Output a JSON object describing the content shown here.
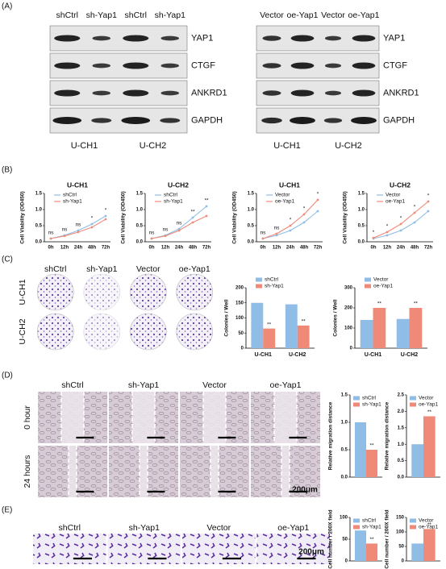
{
  "panel_labels": [
    "(A)",
    "(B)",
    "(C)",
    "(D)",
    "(E)"
  ],
  "blots": [
    {
      "lanes": [
        "shCtrl",
        "sh-Yap1",
        "shCtrl",
        "sh-Yap1"
      ],
      "proteins": [
        "YAP1",
        "CTGF",
        "ANKRD1",
        "GAPDH"
      ],
      "groups": [
        "U-CH1",
        "U-CH2"
      ]
    },
    {
      "lanes": [
        "Vector",
        "oe-Yap1",
        "Vector",
        "oe-Yap1"
      ],
      "proteins": [
        "YAP1",
        "CTGF",
        "ANKRD1",
        "GAPDH"
      ],
      "groups": [
        "U-CH1",
        "U-CH2"
      ]
    }
  ],
  "colony": {
    "columns": [
      "shCtrl",
      "sh-Yap1",
      "Vector",
      "oe-Yap1"
    ],
    "rows": [
      "U-CH1",
      "U-CH2"
    ]
  },
  "migration": {
    "columns": [
      "shCtrl",
      "sh-Yap1",
      "Vector",
      "oe-Yap1"
    ],
    "rows": [
      "0 hour",
      "24 hours"
    ],
    "scale": "200μm"
  },
  "invasion": {
    "columns": [
      "shCtrl",
      "sh-Yap1",
      "Vector",
      "oe-Yap1"
    ],
    "scale": "200μm"
  },
  "chart_data": [
    {
      "type": "line",
      "title": "U-CH1",
      "ylabel": "Cell Viability (OD450)",
      "categories": [
        "0h",
        "12h",
        "24h",
        "48h",
        "72h"
      ],
      "series": [
        {
          "name": "shCtrl",
          "color": "#8fbde6",
          "values": [
            0.1,
            0.2,
            0.35,
            0.55,
            0.8
          ]
        },
        {
          "name": "sh-Yap1",
          "color": "#f08a78",
          "values": [
            0.1,
            0.18,
            0.3,
            0.45,
            0.7
          ]
        }
      ],
      "annotations": [
        "ns",
        "ns",
        "ns",
        "*",
        "*"
      ],
      "ylim": [
        0,
        1.5
      ],
      "yticks": [
        {
          "value": 0,
          "label": "0.0"
        },
        {
          "value": 0.5,
          "label": "0.5"
        },
        {
          "value": 1,
          "label": "1.0"
        },
        {
          "value": 1.5,
          "label": "1.5"
        }
      ]
    },
    {
      "type": "line",
      "title": "U-CH2",
      "ylabel": "Cell Viability (OD450)",
      "categories": [
        "0h",
        "12h",
        "24h",
        "48h",
        "72h"
      ],
      "series": [
        {
          "name": "shCtrl",
          "color": "#8fbde6",
          "values": [
            0.1,
            0.2,
            0.4,
            0.75,
            1.1
          ]
        },
        {
          "name": "sh-Yap1",
          "color": "#f08a78",
          "values": [
            0.1,
            0.18,
            0.35,
            0.6,
            0.8
          ]
        }
      ],
      "annotations": [
        "ns",
        "ns",
        "ns",
        "**",
        "**"
      ],
      "ylim": [
        0,
        1.5
      ],
      "yticks": [
        {
          "value": 0,
          "label": "0.0"
        },
        {
          "value": 0.5,
          "label": "0.5"
        },
        {
          "value": 1,
          "label": "1.0"
        },
        {
          "value": 1.5,
          "label": "1.5"
        }
      ]
    },
    {
      "type": "line",
      "title": "U-CH1",
      "ylabel": "Cell Viability (OD450)",
      "categories": [
        "0h",
        "12h",
        "24h",
        "48h",
        "72h"
      ],
      "series": [
        {
          "name": "Vector",
          "color": "#8fbde6",
          "values": [
            0.1,
            0.2,
            0.35,
            0.6,
            0.95
          ]
        },
        {
          "name": "oe-Yap1",
          "color": "#f08a78",
          "values": [
            0.1,
            0.25,
            0.5,
            0.85,
            1.3
          ]
        }
      ],
      "annotations": [
        "ns",
        "ns",
        "*",
        "*",
        "*"
      ],
      "ylim": [
        0,
        1.5
      ],
      "yticks": [
        {
          "value": 0,
          "label": "0.0"
        },
        {
          "value": 0.5,
          "label": "0.5"
        },
        {
          "value": 1,
          "label": "1.0"
        },
        {
          "value": 1.5,
          "label": "1.5"
        }
      ]
    },
    {
      "type": "line",
      "title": "U-CH2",
      "ylabel": "Cell Viability (OD450)",
      "categories": [
        "0h",
        "12h",
        "24h",
        "48h",
        "72h"
      ],
      "series": [
        {
          "name": "Vector",
          "color": "#8fbde6",
          "values": [
            0.1,
            0.2,
            0.35,
            0.6,
            0.95
          ]
        },
        {
          "name": "oe-Yap1",
          "color": "#f08a78",
          "values": [
            0.12,
            0.3,
            0.55,
            0.9,
            1.25
          ]
        }
      ],
      "annotations": [
        "*",
        "*",
        "*",
        "*",
        "*"
      ],
      "ylim": [
        0,
        1.5
      ],
      "yticks": [
        {
          "value": 0,
          "label": "0.0"
        },
        {
          "value": 0.5,
          "label": "0.5"
        },
        {
          "value": 1,
          "label": "1.0"
        },
        {
          "value": 1.5,
          "label": "1.5"
        }
      ]
    },
    {
      "type": "bar",
      "ylabel": "Colonies / Well",
      "categories": [
        "U-CH1",
        "U-CH2"
      ],
      "series": [
        {
          "name": "shCtrl",
          "color": "#8fbde6",
          "values": [
            150,
            145
          ]
        },
        {
          "name": "sh-Yap1",
          "color": "#f08a78",
          "values": [
            65,
            75
          ]
        }
      ],
      "annotations": [
        "**",
        "**"
      ],
      "ylim": [
        0,
        200
      ],
      "yticks": [
        0,
        50,
        100,
        150,
        200
      ]
    },
    {
      "type": "bar",
      "ylabel": "Colonies / Well",
      "categories": [
        "U-CH1",
        "U-CH2"
      ],
      "series": [
        {
          "name": "Vector",
          "color": "#8fbde6",
          "values": [
            140,
            145
          ]
        },
        {
          "name": "oe-Yap1",
          "color": "#f08a78",
          "values": [
            200,
            200
          ]
        }
      ],
      "annotations": [
        "**",
        "**"
      ],
      "ylim": [
        0,
        300
      ],
      "yticks": [
        0,
        100,
        200,
        300
      ]
    },
    {
      "type": "bar",
      "ylabel": "Relative migration distance",
      "series": [
        {
          "name": "shCtrl",
          "color": "#8fbde6",
          "values": [
            1.0
          ]
        },
        {
          "name": "sh-Yap1",
          "color": "#f08a78",
          "values": [
            0.5
          ]
        }
      ],
      "annotations": [
        "**"
      ],
      "ylim": [
        0,
        1.5
      ],
      "yticks": [
        {
          "value": 0,
          "label": "0.0"
        },
        {
          "value": 0.5,
          "label": "0.5"
        },
        {
          "value": 1,
          "label": "1.0"
        },
        {
          "value": 1.5,
          "label": "1.5"
        }
      ]
    },
    {
      "type": "bar",
      "ylabel": "Relative migration distance",
      "series": [
        {
          "name": "Vector",
          "color": "#8fbde6",
          "values": [
            1.0
          ]
        },
        {
          "name": "oe-Yap1",
          "color": "#f08a78",
          "values": [
            1.85
          ]
        }
      ],
      "annotations": [
        "**"
      ],
      "ylim": [
        0,
        2.5
      ],
      "yticks": [
        {
          "value": 0,
          "label": "0.0"
        },
        {
          "value": 0.5,
          "label": "0.5"
        },
        {
          "value": 1,
          "label": "1.0"
        },
        {
          "value": 1.5,
          "label": "1.5"
        },
        {
          "value": 2,
          "label": "2.0"
        },
        {
          "value": 2.5,
          "label": "2.5"
        }
      ]
    },
    {
      "type": "bar",
      "ylabel": "Cell number / 200X field",
      "series": [
        {
          "name": "shCtrl",
          "color": "#8fbde6",
          "values": [
            70
          ]
        },
        {
          "name": "sh-Yap1",
          "color": "#f08a78",
          "values": [
            40
          ]
        }
      ],
      "annotations": [
        "**"
      ],
      "ylim": [
        0,
        100
      ],
      "yticks": [
        0,
        50,
        100
      ]
    },
    {
      "type": "bar",
      "ylabel": "Cell number / 200X field",
      "series": [
        {
          "name": "Vector",
          "color": "#8fbde6",
          "values": [
            60
          ]
        },
        {
          "name": "oe-Yap1",
          "color": "#f08a78",
          "values": [
            110
          ]
        }
      ],
      "annotations": [
        "**"
      ],
      "ylim": [
        0,
        150
      ],
      "yticks": [
        0,
        50,
        100,
        150
      ]
    }
  ]
}
